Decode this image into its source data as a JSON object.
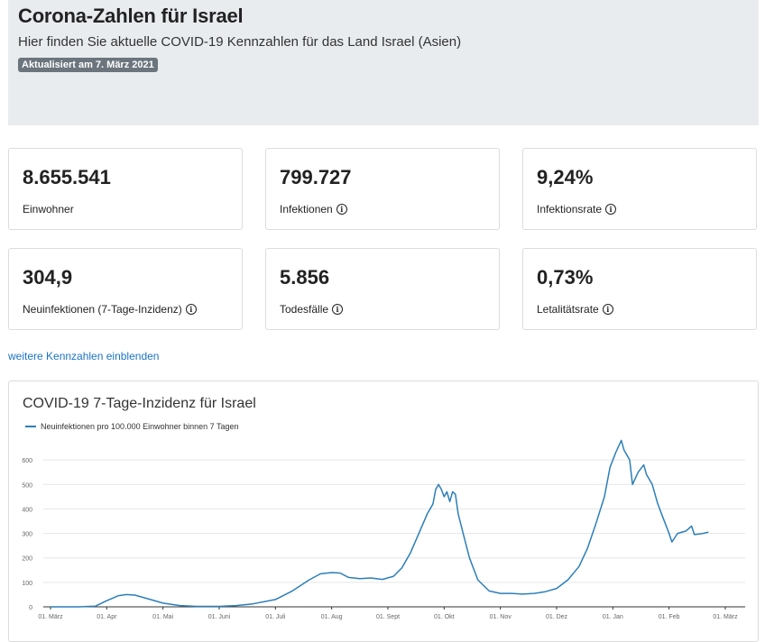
{
  "header": {
    "title": "Corona-Zahlen für Israel",
    "subtitle": "Hier finden Sie aktuelle COVID-19 Kennzahlen für das Land Israel (Asien)",
    "badge": "Aktualisiert am 7. März 2021"
  },
  "cards": [
    {
      "value": "8.655.541",
      "label": "Einwohner",
      "info": false
    },
    {
      "value": "799.727",
      "label": "Infektionen",
      "info": true
    },
    {
      "value": "9,24%",
      "label": "Infektionsrate",
      "info": true
    },
    {
      "value": "304,9",
      "label": "Neuinfektionen (7-Tage-Inzidenz)",
      "info": true
    },
    {
      "value": "5.856",
      "label": "Todesfälle",
      "info": true
    },
    {
      "value": "0,73%",
      "label": "Letalitätsrate",
      "info": true
    }
  ],
  "more_link": "weitere Kennzahlen einblenden",
  "chart_data": {
    "type": "line",
    "title": "COVID-19 7-Tage-Inzidenz für Israel",
    "xlabel": "",
    "ylabel": "",
    "ylim": [
      0,
      700
    ],
    "yticks": [
      0,
      100,
      200,
      300,
      400,
      500,
      600
    ],
    "x_tick_labels": [
      "01. März",
      "01. Apr",
      "01. Mai",
      "01. Juni",
      "01. Juli",
      "01. Aug",
      "01. Sept",
      "01. Okt",
      "01. Nov",
      "01. Dez",
      "01. Jan",
      "01. Feb",
      "01. März"
    ],
    "legend_position": "top-left",
    "grid": true,
    "color": "#2c7fb8",
    "series": [
      {
        "name": "Neuinfektionen pro 100.000 Einwohner binnen 7 Tagen",
        "points": [
          [
            0,
            0
          ],
          [
            0.5,
            0
          ],
          [
            0.8,
            3
          ],
          [
            1.0,
            25
          ],
          [
            1.2,
            45
          ],
          [
            1.35,
            50
          ],
          [
            1.5,
            48
          ],
          [
            1.7,
            35
          ],
          [
            2.0,
            15
          ],
          [
            2.3,
            5
          ],
          [
            2.6,
            2
          ],
          [
            3.0,
            2
          ],
          [
            3.3,
            5
          ],
          [
            3.6,
            12
          ],
          [
            4.0,
            30
          ],
          [
            4.3,
            65
          ],
          [
            4.6,
            110
          ],
          [
            4.8,
            135
          ],
          [
            5.0,
            140
          ],
          [
            5.15,
            138
          ],
          [
            5.3,
            120
          ],
          [
            5.5,
            115
          ],
          [
            5.7,
            118
          ],
          [
            5.9,
            112
          ],
          [
            6.1,
            125
          ],
          [
            6.25,
            160
          ],
          [
            6.4,
            220
          ],
          [
            6.55,
            300
          ],
          [
            6.7,
            380
          ],
          [
            6.8,
            420
          ],
          [
            6.85,
            480
          ],
          [
            6.9,
            500
          ],
          [
            6.95,
            480
          ],
          [
            7.0,
            450
          ],
          [
            7.05,
            470
          ],
          [
            7.1,
            430
          ],
          [
            7.15,
            470
          ],
          [
            7.2,
            460
          ],
          [
            7.25,
            380
          ],
          [
            7.35,
            290
          ],
          [
            7.45,
            200
          ],
          [
            7.6,
            110
          ],
          [
            7.8,
            65
          ],
          [
            8.0,
            55
          ],
          [
            8.2,
            55
          ],
          [
            8.4,
            52
          ],
          [
            8.6,
            55
          ],
          [
            8.8,
            62
          ],
          [
            9.0,
            75
          ],
          [
            9.2,
            110
          ],
          [
            9.4,
            165
          ],
          [
            9.55,
            240
          ],
          [
            9.7,
            340
          ],
          [
            9.85,
            450
          ],
          [
            9.95,
            570
          ],
          [
            10.05,
            630
          ],
          [
            10.15,
            680
          ],
          [
            10.2,
            640
          ],
          [
            10.3,
            600
          ],
          [
            10.35,
            500
          ],
          [
            10.45,
            550
          ],
          [
            10.55,
            580
          ],
          [
            10.6,
            540
          ],
          [
            10.7,
            500
          ],
          [
            10.8,
            420
          ],
          [
            10.9,
            360
          ],
          [
            11.0,
            300
          ],
          [
            11.05,
            265
          ],
          [
            11.15,
            300
          ],
          [
            11.3,
            310
          ],
          [
            11.4,
            330
          ],
          [
            11.45,
            295
          ],
          [
            11.6,
            300
          ],
          [
            11.7,
            305
          ]
        ]
      }
    ]
  }
}
